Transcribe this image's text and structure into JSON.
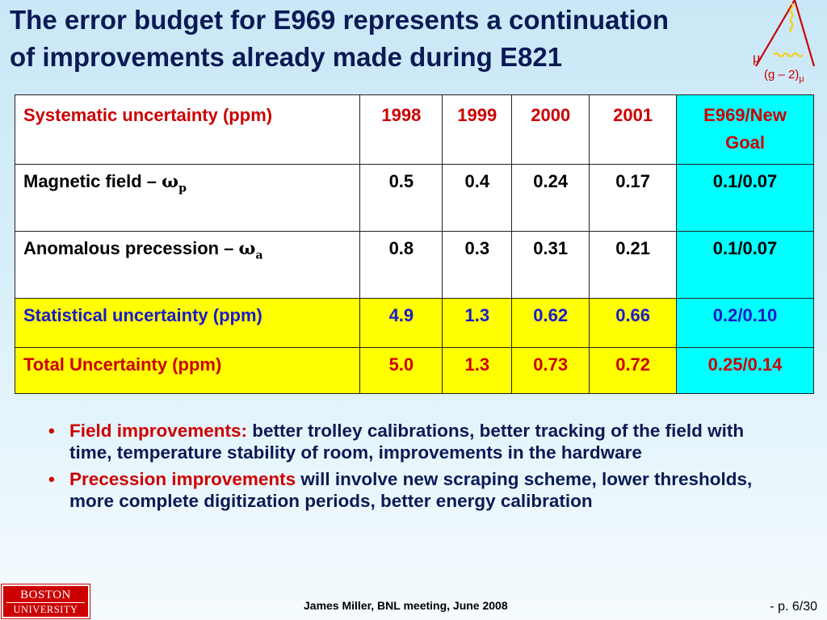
{
  "title": {
    "line1": "The error budget for E969 represents a continuation",
    "line2": "of improvements already made during E821"
  },
  "logo": {
    "mu_label": "μ",
    "g2_label": "(g – 2)",
    "g2_sub": "μ",
    "colors": {
      "diagram_red": "#cc0000",
      "diagram_yellow": "#ffcc00"
    }
  },
  "table": {
    "headers": {
      "label": "Systematic uncertainty (ppm)",
      "years": [
        "1998",
        "1999",
        "2000",
        "2001"
      ],
      "goal_line1": "E969/New",
      "goal_line2": "Goal"
    },
    "rows": {
      "magnetic": {
        "label": "Magnetic field – ",
        "omega": "ω",
        "sub": "p",
        "values": [
          "0.5",
          "0.4",
          "0.24",
          "0.17"
        ],
        "goal": "0.1/0.07"
      },
      "anomalous": {
        "label": "Anomalous precession – ",
        "omega": "ω",
        "sub": "a",
        "values": [
          "0.8",
          "0.3",
          "0.31",
          "0.21"
        ],
        "goal": "0.1/0.07"
      },
      "statistical": {
        "label": "Statistical uncertainty (ppm)",
        "values": [
          "4.9",
          "1.3",
          "0.62",
          "0.66"
        ],
        "goal": "0.2/0.10"
      },
      "total": {
        "label": "Total Uncertainty (ppm)",
        "values": [
          "5.0",
          "1.3",
          "0.73",
          "0.72"
        ],
        "goal": "0.25/0.14"
      }
    },
    "colors": {
      "goal_column": "#00ffff",
      "stat_total_rows": "#ffff00",
      "header_text": "#cc0000",
      "stat_text": "#1a1acc"
    }
  },
  "bullets": [
    {
      "marker": "•",
      "highlight": "Field improvements:",
      "text": " better trolley calibrations,  better tracking of the field with time, temperature stability of room, improvements in the hardware"
    },
    {
      "marker": "•",
      "highlight": "Precession improvements",
      "text": " will involve new scraping scheme, lower thresholds, more complete digitization periods, better energy calibration"
    }
  ],
  "bu_logo": {
    "line1": "BOSTON",
    "line2": "UNIVERSITY"
  },
  "footer": {
    "text": "James Miller,  BNL meeting, June 2008"
  },
  "page": {
    "text": "- p. 6/30"
  }
}
